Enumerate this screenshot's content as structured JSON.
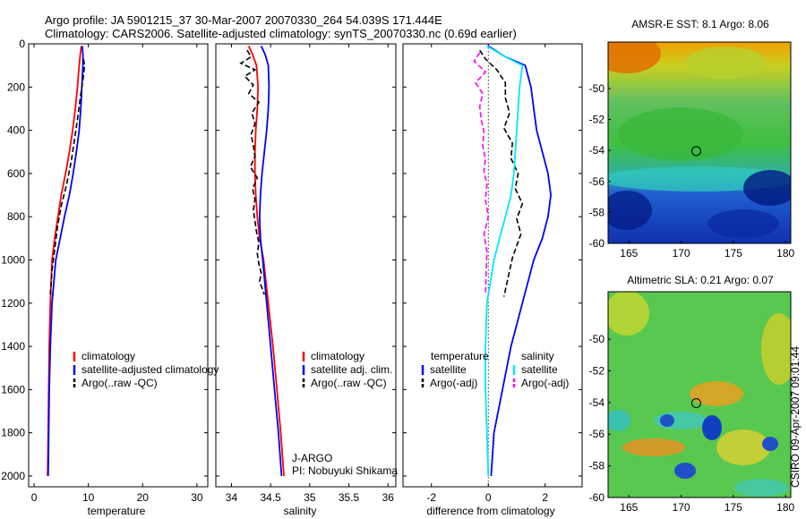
{
  "header": {
    "line1": "Argo profile: JA 5901215_37 30-Mar-2007 20070330_264 54.039S 171.444E",
    "line2": "Climatology: CARS2006. Satellite-adjusted climatology: synTS_20070330.nc (0.69d earlier)"
  },
  "credit": "CSIRO 09-Apr-2007 09:01:44",
  "colors": {
    "red": "#ff0000",
    "blue": "#0000ff",
    "black": "#000000",
    "cyan": "#00e8ff",
    "magenta": "#ff00ff"
  },
  "chart_data": [
    {
      "type": "line",
      "id": "temperature",
      "xlabel": "temperature",
      "xlim": [
        -1,
        32
      ],
      "ylim": [
        2050,
        0
      ],
      "y_reversed": true,
      "xticks": [
        0,
        10,
        20,
        30
      ],
      "yticks": [
        0,
        200,
        400,
        600,
        800,
        1000,
        1200,
        1400,
        1600,
        1800,
        2000
      ],
      "legend": [
        "climatology",
        "satellite-adjusted climatology",
        "Argo(..raw -QC)"
      ],
      "series": [
        {
          "name": "climatology",
          "color": "#ff0000",
          "style": "solid",
          "x": [
            8.7,
            8.5,
            8.3,
            8.0,
            7.6,
            7.1,
            6.5,
            5.8,
            5.0,
            4.4,
            3.8,
            3.3,
            3.0,
            2.8,
            2.7,
            2.6,
            2.5
          ],
          "y": [
            10,
            50,
            100,
            200,
            300,
            400,
            500,
            600,
            700,
            800,
            900,
            1000,
            1200,
            1400,
            1600,
            1800,
            2000
          ]
        },
        {
          "name": "satellite-adjusted climatology",
          "color": "#0000ff",
          "style": "solid",
          "x": [
            8.9,
            9.0,
            9.0,
            8.8,
            8.6,
            8.3,
            7.8,
            7.2,
            6.5,
            5.6,
            4.8,
            4.0,
            3.3,
            3.0,
            2.8,
            2.7,
            2.6
          ],
          "y": [
            10,
            50,
            100,
            200,
            300,
            400,
            500,
            600,
            700,
            800,
            900,
            1000,
            1200,
            1400,
            1600,
            1800,
            2000
          ]
        },
        {
          "name": "Argo(..raw -QC)",
          "color": "#000000",
          "style": "dashed",
          "x": [
            9.1,
            9.3,
            9.1,
            8.5,
            8.0,
            7.4,
            6.8,
            6.0,
            5.0,
            4.3,
            3.8,
            3.3,
            3.0
          ],
          "y": [
            70,
            100,
            150,
            250,
            350,
            450,
            550,
            650,
            750,
            850,
            950,
            1050,
            1160
          ]
        }
      ]
    },
    {
      "type": "line",
      "id": "salinity",
      "xlabel": "salinity",
      "xlim": [
        33.8,
        36.1
      ],
      "ylim": [
        2050,
        0
      ],
      "y_reversed": true,
      "xticks": [
        34,
        34.5,
        35,
        35.5,
        36
      ],
      "legend": [
        "climatology",
        "satellite adj. clim.",
        "Argo(..raw -QC)"
      ],
      "annotation": [
        "J-ARGO",
        "PI: Nobuyuki Shikama"
      ],
      "series": [
        {
          "name": "climatology",
          "color": "#ff0000",
          "style": "solid",
          "x": [
            34.22,
            34.27,
            34.32,
            34.34,
            34.33,
            34.31,
            34.3,
            34.3,
            34.31,
            34.33,
            34.36,
            34.41,
            34.47,
            34.53,
            34.58,
            34.63,
            34.67
          ],
          "y": [
            10,
            50,
            100,
            200,
            300,
            400,
            500,
            600,
            700,
            800,
            900,
            1000,
            1200,
            1400,
            1600,
            1800,
            2000
          ]
        },
        {
          "name": "satellite adj. clim.",
          "color": "#0000ff",
          "style": "solid",
          "x": [
            34.38,
            34.43,
            34.47,
            34.48,
            34.47,
            34.45,
            34.42,
            34.39,
            34.37,
            34.36,
            34.37,
            34.4,
            34.45,
            34.5,
            34.55,
            34.6,
            34.64
          ],
          "y": [
            10,
            50,
            100,
            200,
            300,
            400,
            500,
            600,
            700,
            800,
            900,
            1000,
            1200,
            1400,
            1600,
            1800,
            2000
          ]
        },
        {
          "name": "Argo(..raw -QC)",
          "color": "#000000",
          "style": "dashed",
          "x": [
            34.2,
            34.25,
            34.12,
            34.3,
            34.17,
            34.28,
            34.22,
            34.35,
            34.26,
            34.3,
            34.25,
            34.28,
            34.3,
            34.24,
            34.33,
            34.27,
            34.3,
            34.28,
            34.3,
            34.32,
            34.35,
            34.33,
            34.35,
            34.38,
            34.36,
            34.4,
            34.42
          ],
          "y": [
            30,
            60,
            90,
            120,
            150,
            190,
            230,
            270,
            320,
            370,
            420,
            470,
            520,
            570,
            620,
            670,
            720,
            770,
            820,
            870,
            920,
            970,
            1020,
            1060,
            1100,
            1140,
            1160
          ]
        }
      ]
    },
    {
      "type": "line",
      "id": "difference",
      "xlabel": "difference from climatology",
      "xlim": [
        -3,
        3.3
      ],
      "ylim": [
        2050,
        0
      ],
      "y_reversed": true,
      "xticks": [
        -2,
        0,
        2
      ],
      "legend_headers": [
        "temperature",
        "salinity"
      ],
      "legend": [
        "satellite",
        "Argo(-adj)",
        "satellite",
        "Argo(-adj)"
      ],
      "series": [
        {
          "name": "temperature satellite",
          "color": "#0000ff",
          "style": "solid",
          "x": [
            0.0,
            0.6,
            1.3,
            1.5,
            1.6,
            1.7,
            1.9,
            2.1,
            2.2,
            2.1,
            1.9,
            1.6,
            1.2,
            0.8,
            0.5,
            0.2,
            0.1
          ],
          "y": [
            10,
            60,
            100,
            200,
            300,
            400,
            500,
            600,
            700,
            800,
            900,
            1000,
            1200,
            1400,
            1600,
            1800,
            2000
          ]
        },
        {
          "name": "temperature Argo(-adj)",
          "color": "#000000",
          "style": "dashed",
          "x": [
            -0.3,
            -0.1,
            0.3,
            0.6,
            0.6,
            0.75,
            0.55,
            0.85,
            0.8,
            1.05,
            0.95,
            1.2,
            1.0,
            1.15,
            0.85,
            0.55
          ],
          "y": [
            30,
            70,
            120,
            180,
            250,
            320,
            390,
            460,
            530,
            600,
            670,
            740,
            810,
            880,
            990,
            1170
          ]
        },
        {
          "name": "salinity satellite",
          "color": "#00e8ff",
          "style": "solid",
          "x": [
            -0.05,
            0.6,
            1.2,
            1.1,
            1.05,
            1.0,
            0.95,
            0.9,
            0.8,
            0.6,
            0.4,
            0.2,
            -0.05,
            -0.1,
            -0.1,
            -0.05,
            0.0
          ],
          "y": [
            10,
            60,
            100,
            200,
            300,
            400,
            500,
            600,
            700,
            800,
            900,
            1000,
            1200,
            1400,
            1600,
            1800,
            2000
          ]
        },
        {
          "name": "salinity Argo(-adj)",
          "color": "#ff00ff",
          "style": "dashed",
          "x": [
            -0.3,
            -0.5,
            -0.1,
            -0.45,
            -0.2,
            -0.3,
            -0.25,
            -0.15,
            -0.2,
            -0.1,
            -0.15,
            -0.05,
            -0.1,
            0.0,
            -0.15,
            -0.05,
            -0.1
          ],
          "y": [
            40,
            80,
            130,
            180,
            230,
            290,
            350,
            410,
            470,
            530,
            590,
            650,
            720,
            800,
            880,
            960,
            1160
          ]
        }
      ]
    },
    {
      "type": "heatmap",
      "id": "amse-sst",
      "title": "AMSR-E SST: 8.1 Argo: 8.06",
      "xlim": [
        163,
        180.5
      ],
      "ylim": [
        -60,
        -47
      ],
      "xticks": [
        165,
        170,
        175,
        180
      ],
      "yticks": [
        -50,
        -52,
        -54,
        -56,
        -58,
        -60
      ],
      "marker": {
        "lon": 171.444,
        "lat": -54.039
      }
    },
    {
      "type": "heatmap",
      "id": "altimetric-sla",
      "title": "Altimetric SLA: 0.21 Argo: 0.07",
      "xlim": [
        163,
        180.5
      ],
      "ylim": [
        -60,
        -47
      ],
      "xticks": [
        165,
        170,
        175,
        180
      ],
      "yticks": [
        -50,
        -52,
        -54,
        -56,
        -58,
        -60
      ],
      "marker": {
        "lon": 171.444,
        "lat": -54.039
      }
    }
  ]
}
